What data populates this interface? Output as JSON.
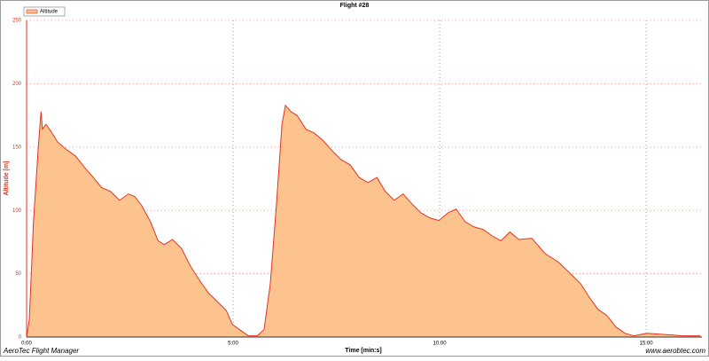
{
  "chart_data": {
    "type": "area",
    "title": "Flight #28",
    "x_label": "Time [min:s]",
    "y_label": "Altitude [m]",
    "x": [
      0,
      4,
      10,
      17,
      21,
      23,
      28,
      36,
      45,
      58,
      71,
      84,
      97,
      109,
      122,
      135,
      148,
      157,
      167,
      180,
      191,
      200,
      212,
      225,
      238,
      251,
      264,
      277,
      290,
      299,
      309,
      322,
      335,
      345,
      354,
      363,
      371,
      376,
      384,
      393,
      406,
      418,
      431,
      444,
      457,
      470,
      483,
      496,
      509,
      521,
      534,
      547,
      560,
      573,
      586,
      599,
      612,
      624,
      637,
      650,
      663,
      676,
      689,
      702,
      715,
      734,
      753,
      773,
      792,
      805,
      818,
      830,
      843,
      856,
      869,
      882,
      901,
      927,
      953,
      979
    ],
    "series": [
      {
        "name": "Altitude",
        "color": "#e5341f",
        "fill": "#fdc38f",
        "values": [
          0,
          14,
          91,
          150,
          178,
          164,
          168,
          162,
          154,
          148,
          143,
          134,
          126,
          118,
          115,
          108,
          113,
          111,
          104,
          91,
          76,
          73,
          77,
          70,
          56,
          45,
          35,
          28,
          21,
          10,
          6,
          1,
          1,
          6,
          42,
          105,
          168,
          183,
          178,
          175,
          164,
          161,
          155,
          147,
          140,
          136,
          126,
          122,
          126,
          115,
          108,
          113,
          105,
          98,
          94,
          92,
          98,
          101,
          91,
          87,
          85,
          80,
          76,
          83,
          77,
          78,
          66,
          59,
          49,
          42,
          31,
          22,
          17,
          8,
          3,
          1,
          3,
          2,
          1,
          1
        ]
      }
    ],
    "xlim": [
      0,
      981
    ],
    "ylim": [
      0,
      250
    ],
    "xticks": [
      {
        "value": 0,
        "label": "0:00"
      },
      {
        "value": 300,
        "label": "5:00"
      },
      {
        "value": 600,
        "label": "10:00"
      },
      {
        "value": 900,
        "label": "15:00"
      }
    ],
    "yticks": [
      0,
      50,
      100,
      150,
      200,
      250
    ],
    "grid": true,
    "legend": "top-left"
  },
  "footer": {
    "left": "AeroTec Flight Manager",
    "right": "www.aerobtec.com"
  }
}
